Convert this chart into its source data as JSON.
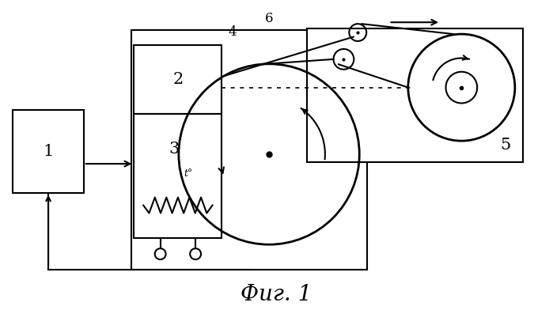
{
  "bg_color": "#ffffff",
  "title": "Фиг. 1",
  "title_fontsize": 20,
  "lw": 1.5
}
